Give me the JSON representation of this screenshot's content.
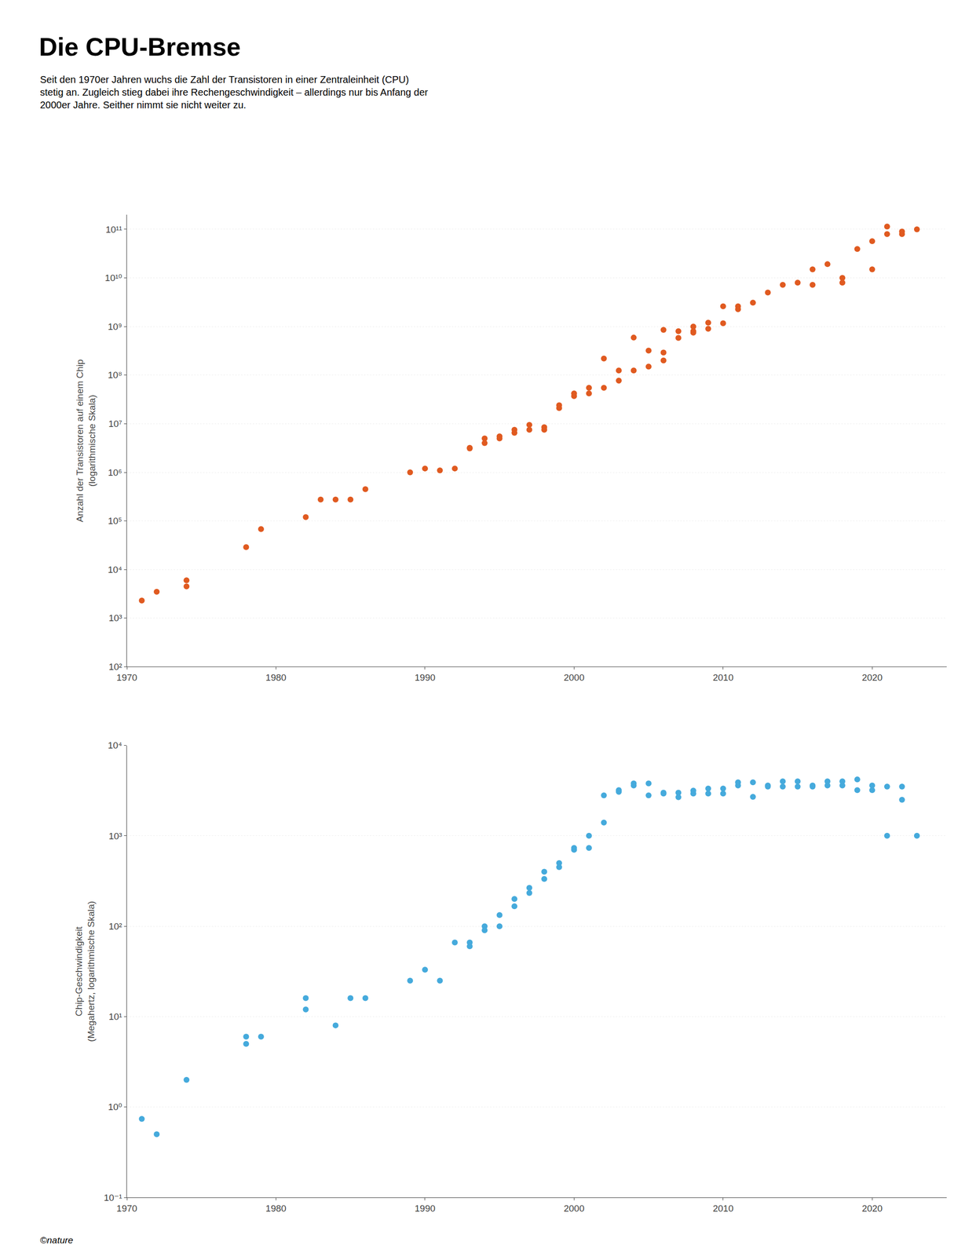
{
  "chart_data": [
    {
      "type": "scatter",
      "title": "Die CPU-Bremse",
      "subtitle": "Seit den 1970er Jahren wuchs die Zahl der Transistoren in einer Zentraleinheit (CPU)\nstetig an. Zugleich stieg dabei ihre Rechengeschwindigkeit – allerdings nur bis Anfang der\n2000er Jahre. Seither nimmt sie nicht weiter zu.",
      "ylabel": "Anzahl der Transistoren auf einem Chip\n(logarithmische Skala)",
      "color": "#e05a20",
      "x": [
        1971,
        1972,
        1974,
        1974,
        1978,
        1979,
        1982,
        1983,
        1984,
        1985,
        1986,
        1989,
        1990,
        1991,
        1992,
        1993,
        1993,
        1994,
        1994,
        1995,
        1995,
        1996,
        1996,
        1997,
        1997,
        1998,
        1998,
        1999,
        1999,
        2000,
        2000,
        2001,
        2001,
        2002,
        2002,
        2003,
        2003,
        2004,
        2004,
        2005,
        2005,
        2006,
        2006,
        2006,
        2007,
        2007,
        2008,
        2008,
        2008,
        2009,
        2009,
        2010,
        2010,
        2011,
        2011,
        2012,
        2013,
        2014,
        2015,
        2016,
        2016,
        2017,
        2018,
        2018,
        2019,
        2020,
        2020,
        2021,
        2021,
        2022,
        2022,
        2023
      ],
      "values": [
        2300,
        3500,
        4500,
        6000,
        29000,
        68000,
        120000,
        275000,
        275000,
        275000,
        450000,
        1000000,
        1200000,
        1100000,
        1200000,
        3100000,
        3200000,
        5000000,
        4000000,
        5500000,
        5000000,
        7500000,
        6500000,
        9500000,
        7500000,
        8500000,
        7500000,
        21000000,
        24000000,
        42000000,
        37000000,
        55000000,
        42000000,
        55000000,
        220000000,
        77000000,
        125000000,
        125000000,
        592000000,
        150000000,
        320000000,
        200000000,
        291000000,
        855000000,
        800000000,
        582000000,
        800000000,
        1000000000,
        750000000,
        1200000000,
        900000000,
        1170000000,
        2600000000,
        2270000000,
        2600000000,
        3100000000,
        5000000000,
        7200000000,
        8000000000,
        7200000000,
        15000000000,
        19200000000,
        8000000000,
        10000000000,
        39500000000,
        15000000000,
        57000000000,
        80000000000,
        114000000000,
        80000000000,
        90000000000,
        100000000000
      ],
      "xlim": [
        1970,
        2025
      ],
      "xticks": [
        1970,
        1980,
        1990,
        2000,
        2010,
        2020
      ],
      "ylim": [
        100,
        200000000000.0
      ],
      "yticks": [
        {
          "value": 100,
          "label": "10²"
        },
        {
          "value": 1000,
          "label": "10³"
        },
        {
          "value": 10000,
          "label": "10⁴"
        },
        {
          "value": 100000,
          "label": "10⁵"
        },
        {
          "value": 1000000,
          "label": "10⁶"
        },
        {
          "value": 10000000,
          "label": "10⁷"
        },
        {
          "value": 100000000,
          "label": "10⁸"
        },
        {
          "value": 1000000000,
          "label": "10⁹"
        },
        {
          "value": 10000000000,
          "label": "10¹⁰"
        },
        {
          "value": 100000000000,
          "label": "10¹¹"
        }
      ],
      "log": "y",
      "grid": "y"
    },
    {
      "type": "scatter",
      "ylabel": "Chip-Geschwindigkeit\n(Megahertz, logarithmische Skala)",
      "color": "#45aadc",
      "x": [
        1971,
        1972,
        1974,
        1978,
        1978,
        1979,
        1982,
        1982,
        1984,
        1985,
        1986,
        1989,
        1990,
        1991,
        1992,
        1993,
        1993,
        1994,
        1994,
        1995,
        1995,
        1996,
        1996,
        1997,
        1997,
        1998,
        1998,
        1999,
        1999,
        2000,
        2000,
        2001,
        2001,
        2002,
        2002,
        2003,
        2003,
        2004,
        2004,
        2005,
        2005,
        2006,
        2006,
        2007,
        2007,
        2008,
        2008,
        2009,
        2009,
        2010,
        2010,
        2011,
        2011,
        2012,
        2012,
        2013,
        2013,
        2014,
        2014,
        2015,
        2015,
        2016,
        2016,
        2017,
        2017,
        2018,
        2018,
        2019,
        2019,
        2020,
        2020,
        2021,
        2021,
        2022,
        2022,
        2023
      ],
      "values": [
        0.74,
        0.5,
        2,
        5,
        6,
        6,
        16,
        12,
        8,
        16,
        16,
        25,
        33,
        25,
        66,
        66,
        60,
        100,
        90,
        100,
        133,
        200,
        166,
        233,
        266,
        333,
        400,
        450,
        500,
        700,
        733,
        733,
        1000,
        2800,
        1400,
        3200,
        3060,
        3800,
        3600,
        3800,
        2800,
        2930,
        3000,
        3000,
        2670,
        3160,
        2930,
        2930,
        3330,
        2930,
        3330,
        3900,
        3600,
        3900,
        2700,
        3500,
        3600,
        3500,
        4000,
        4000,
        3500,
        3500,
        3600,
        4000,
        3600,
        3600,
        4000,
        3200,
        4200,
        3600,
        3200,
        3500,
        1000,
        2500,
        3500,
        1000
      ],
      "xlim": [
        1970,
        2025
      ],
      "xticks": [
        1970,
        1980,
        1990,
        2000,
        2010,
        2020
      ],
      "ylim": [
        0.1,
        10000
      ],
      "yticks": [
        {
          "value": 0.1,
          "label": "10⁻¹"
        },
        {
          "value": 1,
          "label": "10⁰"
        },
        {
          "value": 10,
          "label": "10¹"
        },
        {
          "value": 100,
          "label": "10²"
        },
        {
          "value": 1000,
          "label": "10³"
        },
        {
          "value": 10000,
          "label": "10⁴"
        }
      ],
      "log": "y",
      "grid": "y",
      "annotations": [
        "©nature"
      ]
    }
  ]
}
